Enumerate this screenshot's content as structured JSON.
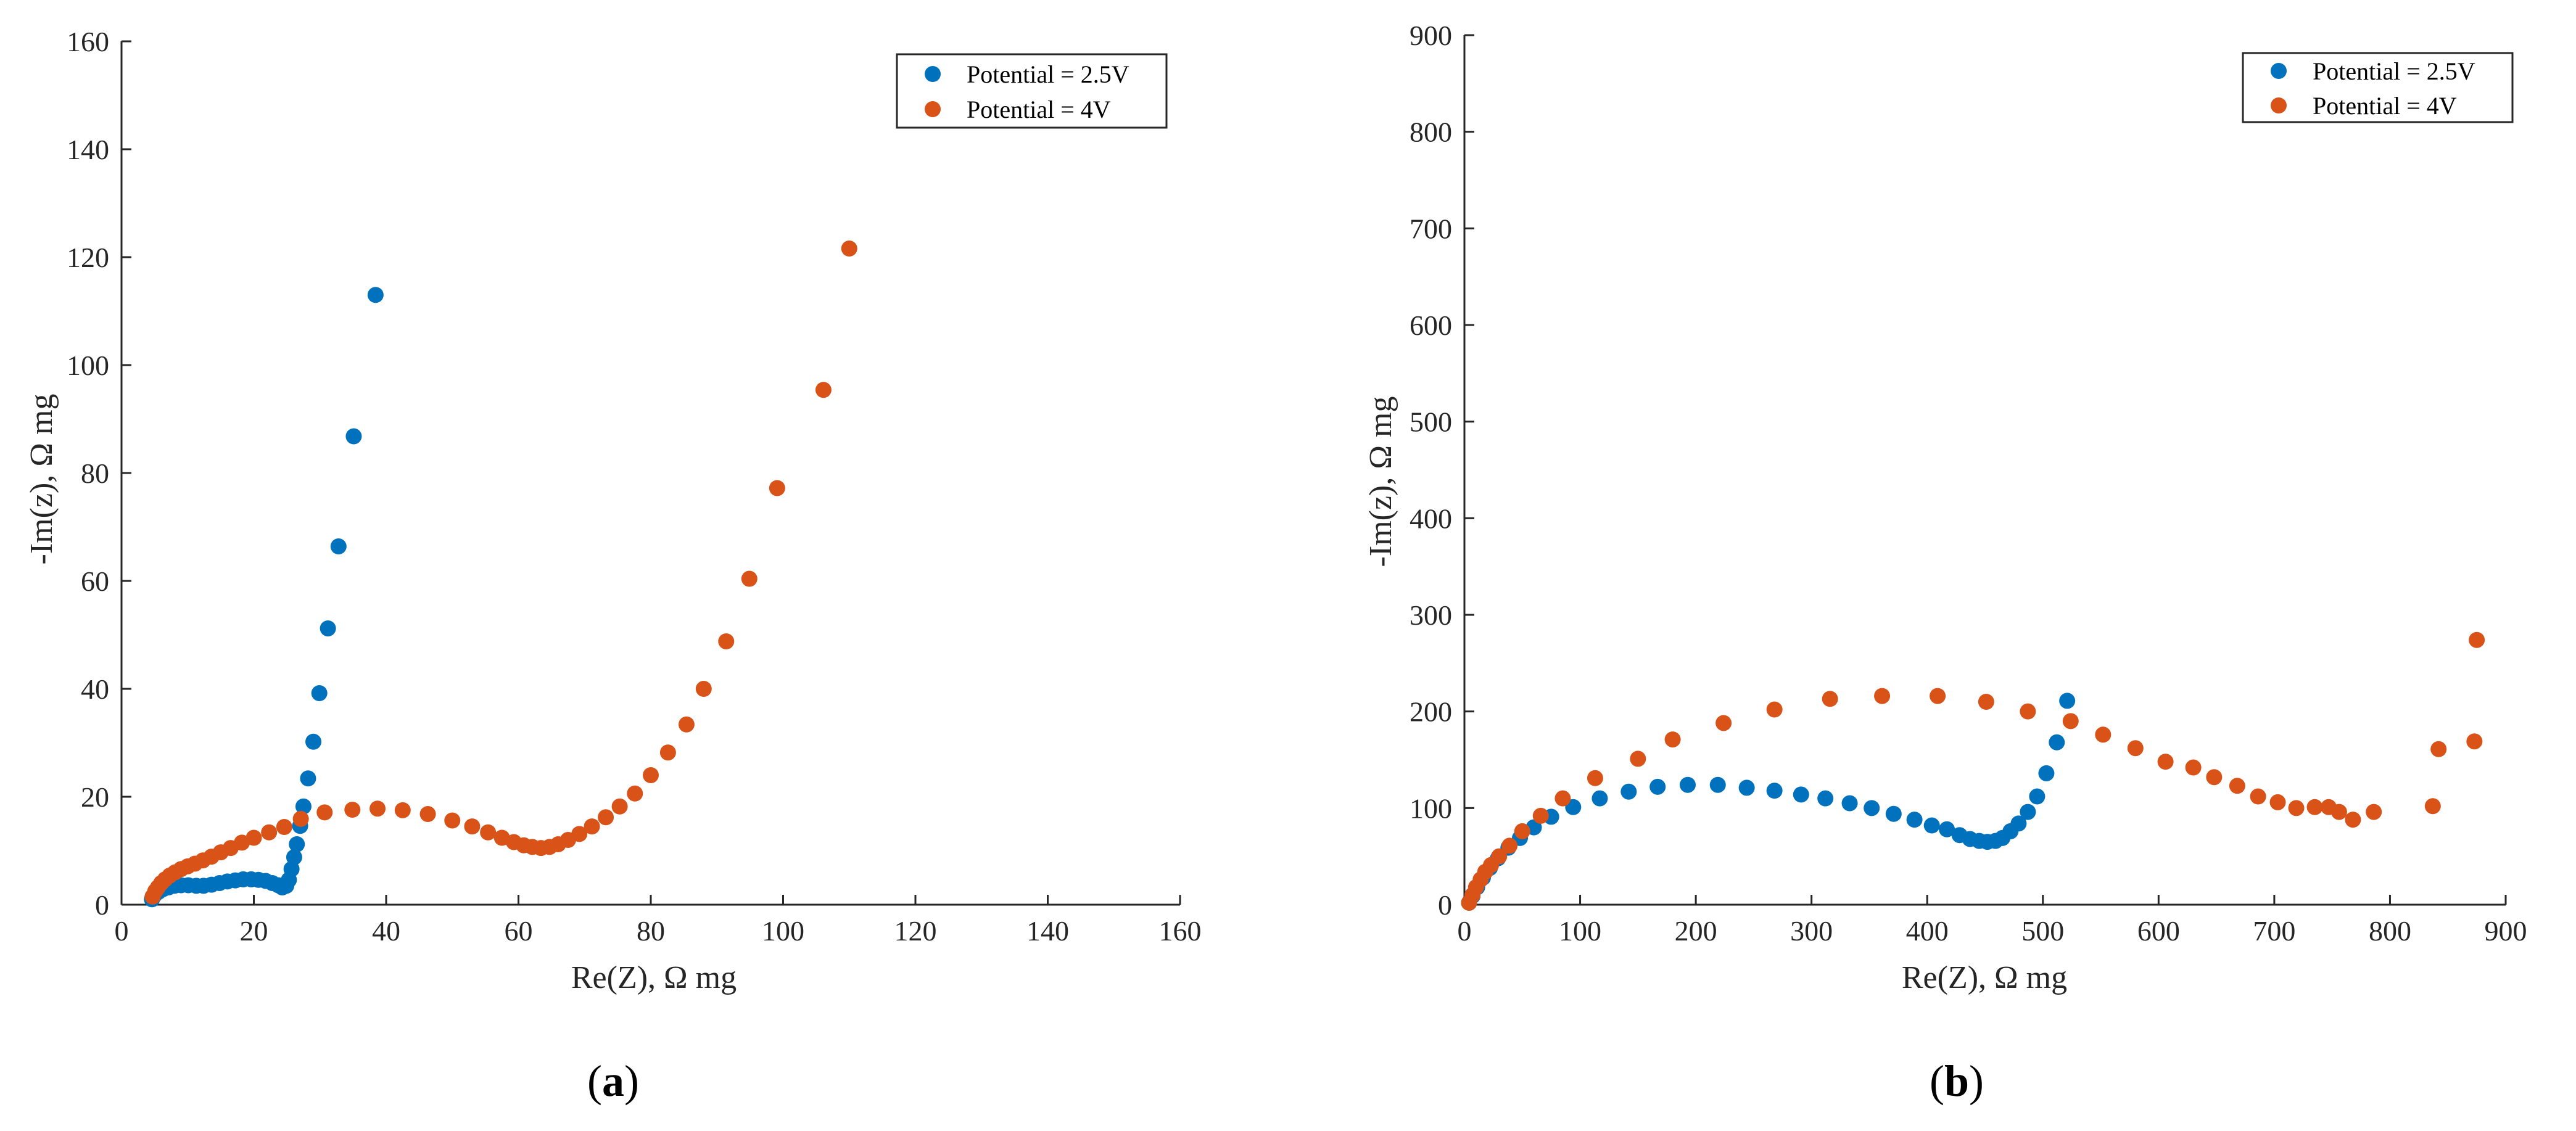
{
  "chart_data": [
    {
      "type": "scatter",
      "panel_label": "a",
      "xlabel": "Re(Z), Ω mg",
      "ylabel": "-Im(z), Ω mg",
      "xlim": [
        0,
        160
      ],
      "ylim": [
        0,
        160
      ],
      "xticks": [
        0,
        20,
        40,
        60,
        80,
        100,
        120,
        140,
        160
      ],
      "yticks": [
        0,
        20,
        40,
        60,
        80,
        100,
        120,
        140,
        160
      ],
      "legend_position": "top-right",
      "series": [
        {
          "name": "Potential = 2.5V",
          "color": "#0072BD",
          "points": [
            [
              4.6,
              1.0
            ],
            [
              5.0,
              1.8
            ],
            [
              5.6,
              2.4
            ],
            [
              6.3,
              2.9
            ],
            [
              7.1,
              3.2
            ],
            [
              8.0,
              3.5
            ],
            [
              9.0,
              3.6
            ],
            [
              10.1,
              3.6
            ],
            [
              11.3,
              3.5
            ],
            [
              12.4,
              3.5
            ],
            [
              13.6,
              3.7
            ],
            [
              14.8,
              4.0
            ],
            [
              16.0,
              4.3
            ],
            [
              17.2,
              4.5
            ],
            [
              18.4,
              4.7
            ],
            [
              19.6,
              4.7
            ],
            [
              20.7,
              4.6
            ],
            [
              21.8,
              4.4
            ],
            [
              22.8,
              4.0
            ],
            [
              23.7,
              3.6
            ],
            [
              24.3,
              3.2
            ],
            [
              24.9,
              3.5
            ],
            [
              25.3,
              4.6
            ],
            [
              25.7,
              6.6
            ],
            [
              26.1,
              8.8
            ],
            [
              26.5,
              11.2
            ],
            [
              27.0,
              14.6
            ],
            [
              27.5,
              18.2
            ],
            [
              28.2,
              23.4
            ],
            [
              29.0,
              30.2
            ],
            [
              29.9,
              39.2
            ],
            [
              31.2,
              51.2
            ],
            [
              32.8,
              66.4
            ],
            [
              35.1,
              86.8
            ],
            [
              38.4,
              113.0
            ]
          ]
        },
        {
          "name": "Potential = 4V",
          "color": "#D95319",
          "points": [
            [
              4.7,
              1.5
            ],
            [
              5.1,
              2.5
            ],
            [
              5.5,
              3.2
            ],
            [
              6.0,
              4.0
            ],
            [
              6.6,
              4.7
            ],
            [
              7.3,
              5.4
            ],
            [
              8.1,
              6.0
            ],
            [
              9.0,
              6.6
            ],
            [
              10.0,
              7.1
            ],
            [
              11.1,
              7.6
            ],
            [
              12.3,
              8.2
            ],
            [
              13.6,
              8.9
            ],
            [
              15.0,
              9.7
            ],
            [
              16.5,
              10.5
            ],
            [
              18.2,
              11.5
            ],
            [
              20.0,
              12.4
            ],
            [
              22.3,
              13.4
            ],
            [
              24.6,
              14.4
            ],
            [
              27.1,
              15.9
            ],
            [
              30.7,
              17.1
            ],
            [
              34.9,
              17.6
            ],
            [
              38.7,
              17.8
            ],
            [
              42.5,
              17.5
            ],
            [
              46.3,
              16.8
            ],
            [
              50.0,
              15.6
            ],
            [
              53.0,
              14.5
            ],
            [
              55.4,
              13.4
            ],
            [
              57.5,
              12.4
            ],
            [
              59.3,
              11.6
            ],
            [
              60.8,
              11.0
            ],
            [
              62.1,
              10.7
            ],
            [
              63.4,
              10.5
            ],
            [
              64.7,
              10.7
            ],
            [
              66.0,
              11.2
            ],
            [
              67.5,
              12.0
            ],
            [
              69.2,
              13.1
            ],
            [
              71.1,
              14.5
            ],
            [
              73.2,
              16.2
            ],
            [
              75.3,
              18.2
            ],
            [
              77.6,
              20.6
            ],
            [
              80.0,
              24.0
            ],
            [
              82.6,
              28.2
            ],
            [
              85.4,
              33.4
            ],
            [
              88.0,
              40.0
            ],
            [
              91.4,
              48.8
            ],
            [
              94.9,
              60.4
            ],
            [
              99.1,
              77.2
            ],
            [
              106.1,
              95.4
            ],
            [
              110.0,
              121.6
            ]
          ]
        }
      ]
    },
    {
      "type": "scatter",
      "panel_label": "b",
      "xlabel": "Re(Z), Ω mg",
      "ylabel": "-Im(z), Ω mg",
      "xlim": [
        0,
        900
      ],
      "ylim": [
        0,
        900
      ],
      "xticks": [
        0,
        100,
        200,
        300,
        400,
        500,
        600,
        700,
        800,
        900
      ],
      "yticks": [
        0,
        100,
        200,
        300,
        400,
        500,
        600,
        700,
        800,
        900
      ],
      "legend_position": "top-right",
      "series": [
        {
          "name": "Potential = 2.5V",
          "color": "#0072BD",
          "points": [
            [
              4,
              2
            ],
            [
              7,
              9
            ],
            [
              11,
              18
            ],
            [
              16,
              28
            ],
            [
              22,
              38
            ],
            [
              29,
              48
            ],
            [
              38,
              59
            ],
            [
              48,
              69
            ],
            [
              60,
              80
            ],
            [
              75,
              91
            ],
            [
              94,
              101
            ],
            [
              117,
              110
            ],
            [
              142,
              117
            ],
            [
              167,
              122
            ],
            [
              193,
              124
            ],
            [
              219,
              124
            ],
            [
              244,
              121
            ],
            [
              268,
              118
            ],
            [
              291,
              114
            ],
            [
              312,
              110
            ],
            [
              333,
              105
            ],
            [
              352,
              100
            ],
            [
              371,
              94
            ],
            [
              389,
              88
            ],
            [
              404,
              82
            ],
            [
              417,
              78
            ],
            [
              428,
              72
            ],
            [
              437,
              68
            ],
            [
              445,
              66
            ],
            [
              452,
              65
            ],
            [
              459,
              66
            ],
            [
              465,
              69
            ],
            [
              472,
              76
            ],
            [
              479,
              84
            ],
            [
              487,
              96
            ],
            [
              495,
              112
            ],
            [
              503,
              136
            ],
            [
              512,
              168
            ],
            [
              521,
              211
            ]
          ]
        },
        {
          "name": "Potential = 4V",
          "color": "#D95319",
          "points": [
            [
              4,
              2
            ],
            [
              7,
              10
            ],
            [
              10,
              18
            ],
            [
              14,
              26
            ],
            [
              18,
              34
            ],
            [
              23,
              41
            ],
            [
              30,
              50
            ],
            [
              39,
              61
            ],
            [
              50,
              76
            ],
            [
              66,
              92
            ],
            [
              85,
              110
            ],
            [
              113,
              131
            ],
            [
              150,
              151
            ],
            [
              180,
              171
            ],
            [
              224,
              188
            ],
            [
              268,
              202
            ],
            [
              316,
              213
            ],
            [
              361,
              216
            ],
            [
              409,
              216
            ],
            [
              451,
              210
            ],
            [
              487,
              200
            ],
            [
              524,
              190
            ],
            [
              552,
              176
            ],
            [
              580,
              162
            ],
            [
              606,
              148
            ],
            [
              630,
              142
            ],
            [
              648,
              132
            ],
            [
              668,
              123
            ],
            [
              686,
              112
            ],
            [
              703,
              106
            ],
            [
              719,
              100
            ],
            [
              735,
              101
            ],
            [
              747,
              101
            ],
            [
              756,
              96
            ],
            [
              768,
              88
            ],
            [
              786,
              96
            ],
            [
              837,
              102
            ],
            [
              842,
              161
            ],
            [
              873,
              169
            ],
            [
              875,
              274
            ]
          ]
        }
      ]
    }
  ]
}
